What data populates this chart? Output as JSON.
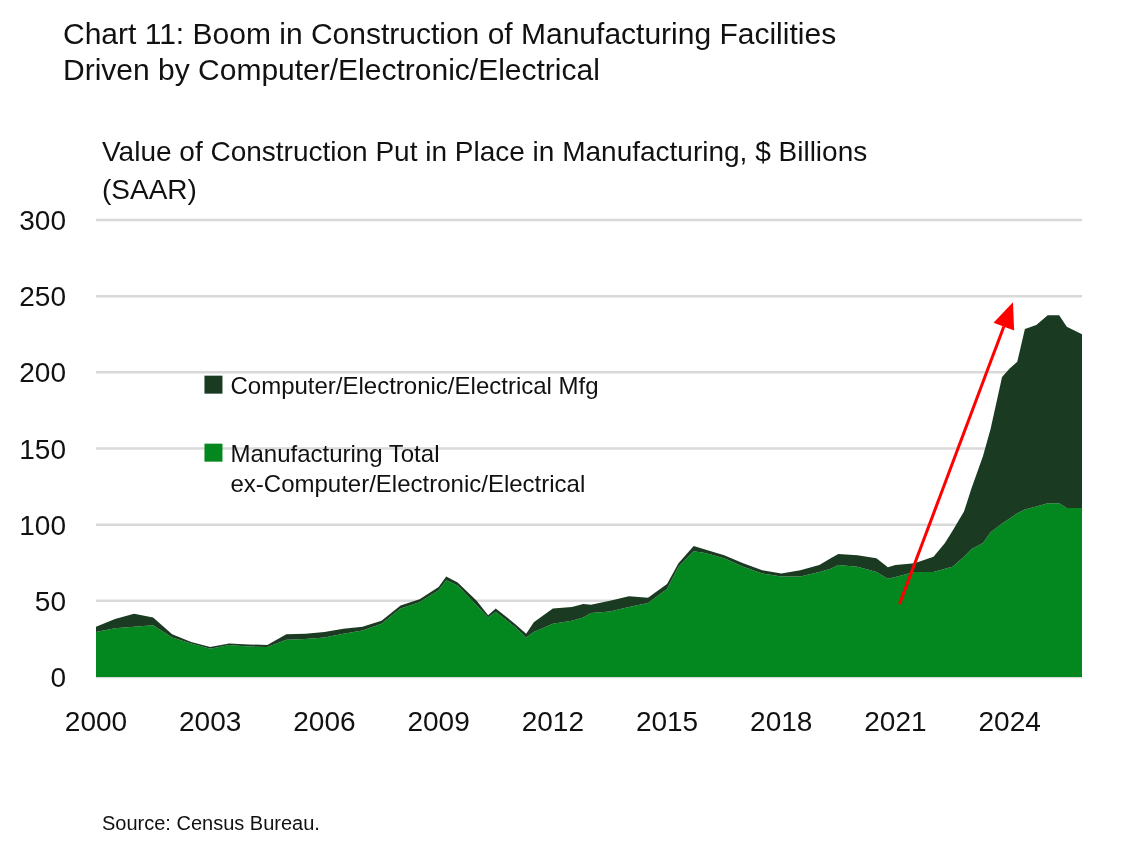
{
  "chart_data": {
    "type": "area",
    "stacked": true,
    "title": "Chart 11: Boom in Construction of Manufacturing Facilities Driven by Computer/Electronic/Electrical",
    "ylabel": "Value of Construction Put in Place in Manufacturing, $ Billions (SAAR)",
    "annotations": [
      "Source: Census Bureau."
    ],
    "x": [
      2000,
      2000.5,
      2001,
      2001.5,
      2002,
      2002.5,
      2003,
      2003.5,
      2004,
      2004.5,
      2005,
      2005.5,
      2006,
      2006.5,
      2007,
      2007.5,
      2008,
      2008.5,
      2009,
      2009.2,
      2009.5,
      2010,
      2010.3,
      2010.5,
      2011,
      2011.3,
      2011.5,
      2012,
      2012.5,
      2012.8,
      2013,
      2013.5,
      2014,
      2014.5,
      2015,
      2015.3,
      2015.7,
      2016,
      2016.5,
      2017,
      2017.5,
      2018,
      2018.5,
      2019,
      2019.3,
      2019.5,
      2020,
      2020.5,
      2020.8,
      2021,
      2021.5,
      2022,
      2022.3,
      2022.5,
      2022.8,
      2023,
      2023.3,
      2023.5,
      2023.8,
      2024,
      2024.2,
      2024.4,
      2024.7,
      2025,
      2025.3,
      2025.5,
      2025.9
    ],
    "series": [
      {
        "name": "Manufacturing Total ex-Computer/Electronic/Electrical",
        "color": "#03871f",
        "values": [
          29.5,
          32,
          33,
          34,
          26,
          22,
          18.6,
          21,
          20,
          19.7,
          24.5,
          25,
          26,
          28.4,
          30.6,
          35,
          45,
          49,
          57,
          63.5,
          60,
          47,
          39,
          42.7,
          33,
          26,
          29.5,
          35,
          37,
          39,
          42,
          43,
          46,
          48.6,
          57.7,
          72.4,
          82.6,
          81.4,
          78,
          72.4,
          68,
          66,
          66,
          69,
          71,
          73.5,
          72.4,
          69,
          64.5,
          65.6,
          69,
          69,
          71,
          72.4,
          79,
          84,
          88,
          95,
          100.7,
          104,
          107.5,
          110,
          112,
          114,
          114,
          111,
          111
        ]
      },
      {
        "name": "Computer/Electronic/Electrical Mfg",
        "color": "#1a3a22",
        "values": [
          3.5,
          6,
          8.5,
          5,
          2,
          1,
          1.1,
          1,
          1.4,
          1.3,
          3.5,
          3.4,
          3.5,
          3.3,
          2.4,
          2,
          2,
          2,
          2,
          2.5,
          2,
          3,
          1.5,
          2.3,
          2,
          2.4,
          6.5,
          10,
          9,
          9,
          5.5,
          7,
          7,
          3.4,
          3.3,
          2.3,
          3.4,
          2.3,
          2,
          2.3,
          2,
          2,
          4,
          4.5,
          7,
          7.3,
          7.6,
          9,
          7.5,
          7.9,
          5.7,
          10,
          17,
          23.6,
          29.6,
          40,
          57,
          68,
          96.3,
          98.5,
          99.5,
          118.5,
          119,
          123.5,
          123.5,
          119,
          114
        ]
      }
    ],
    "xlim": [
      2000,
      2025.9
    ],
    "xticks": [
      2000,
      2003,
      2006,
      2009,
      2012,
      2015,
      2018,
      2021,
      2024
    ],
    "ylim": [
      0,
      300
    ],
    "yticks": [
      0,
      50,
      100,
      150,
      200,
      250,
      300
    ],
    "grid": "y",
    "legend": "left"
  }
}
